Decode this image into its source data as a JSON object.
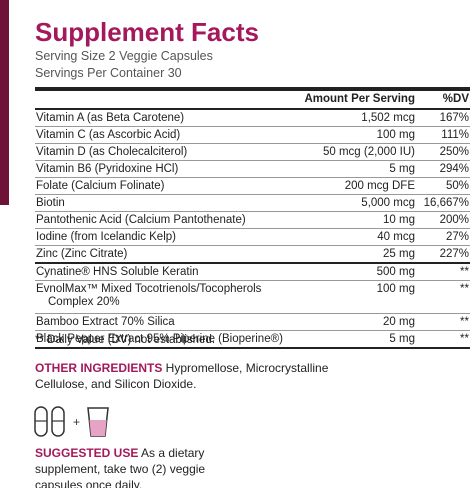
{
  "title": "Supplement Facts",
  "serving_size": "Serving Size  2 Veggie Capsules",
  "servings_per_container": "Servings Per Container  30",
  "table": {
    "header": {
      "amount": "Amount Per Serving",
      "dv": "%DV"
    },
    "sections": [
      [
        {
          "name": "Vitamin A (as Beta Carotene)",
          "amount": "1,502 mcg",
          "dv": "167%"
        },
        {
          "name": "Vitamin C (as Ascorbic Acid)",
          "amount": "100 mg",
          "dv": "111%"
        },
        {
          "name": "Vitamin D (as Cholecalciterol)",
          "amount": "50 mcg (2,000 IU)",
          "dv": "250%"
        },
        {
          "name": "Vitamin B6 (Pyridoxine HCl)",
          "amount": "5 mg",
          "dv": "294%"
        },
        {
          "name": "Folate (Calcium Folinate)",
          "amount": "200 mcg DFE",
          "dv": "50%"
        },
        {
          "name": "Biotin",
          "amount": "5,000 mcg",
          "dv": "16,667%"
        },
        {
          "name": "Pantothenic Acid (Calcium Pantothenate)",
          "amount": "10 mg",
          "dv": "200%"
        },
        {
          "name": "Iodine (from Icelandic Kelp)",
          "amount": "40 mcg",
          "dv": "27%"
        },
        {
          "name": "Zinc (Zinc Citrate)",
          "amount": "25 mg",
          "dv": "227%"
        }
      ],
      [
        {
          "name": "Cynatine® HNS Soluble Keratin",
          "amount": "500 mg",
          "dv": "**"
        },
        {
          "name": [
            "EvnolMax™ Mixed Tocotrienols/Tocopherols",
            "Complex 20%"
          ],
          "amount": "100 mg",
          "dv": "**"
        },
        {
          "name": "Bamboo Extract 70% Silica",
          "amount": "20 mg",
          "dv": "**"
        },
        {
          "name": "Black Pepper Extract 95% Piperine (Bioperine®)",
          "amount": "5 mg",
          "dv": "**"
        }
      ]
    ]
  },
  "footnote": "** Daily Value (DV) not established.",
  "other_ingredients": {
    "label": "OTHER INGREDIENTS",
    "text": " Hypromellose, Microcrystalline Cellulose, and Silicon Dioxide."
  },
  "suggested_use": {
    "label": "SUGGESTED USE",
    "text": " As a dietary supplement, take two (2) veggie capsules once daily."
  }
}
